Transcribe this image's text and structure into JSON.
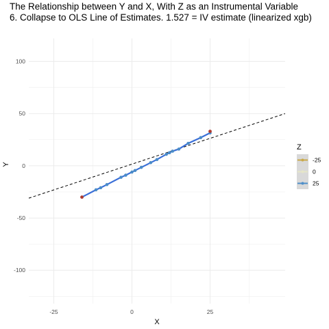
{
  "chart_data": {
    "type": "scatter",
    "title": "The Relationship between Y and X, With Z as an Instrumental Variable",
    "subtitle": "6. Collapse to OLS Line of Estimates. 1.527  = IV estimate (linearized xgb)",
    "xlabel": "X",
    "ylabel": "Y",
    "xlim": [
      -33,
      49
    ],
    "ylim": [
      -132,
      122
    ],
    "x_ticks": [
      -25,
      0,
      25
    ],
    "y_ticks": [
      -100,
      -50,
      0,
      50,
      100
    ],
    "grid": true,
    "legend": {
      "title": "Z",
      "position": "right",
      "entries": [
        {
          "label": "-25",
          "color": "#c9a94a"
        },
        {
          "label": "0",
          "color": "#e6e6c8"
        },
        {
          "label": "25",
          "color": "#4f8fc9"
        }
      ]
    },
    "fitted_points": [
      {
        "x": -16,
        "y": -30
      },
      {
        "x": -11.5,
        "y": -23
      },
      {
        "x": -10,
        "y": -21
      },
      {
        "x": -8,
        "y": -18
      },
      {
        "x": -3.5,
        "y": -11
      },
      {
        "x": -2,
        "y": -9
      },
      {
        "x": 0,
        "y": -6
      },
      {
        "x": 1,
        "y": -4.5
      },
      {
        "x": 3,
        "y": -1.5
      },
      {
        "x": 6,
        "y": 3
      },
      {
        "x": 8,
        "y": 6
      },
      {
        "x": 11,
        "y": 11
      },
      {
        "x": 12,
        "y": 12.5
      },
      {
        "x": 13,
        "y": 14
      },
      {
        "x": 15,
        "y": 16
      },
      {
        "x": 18,
        "y": 21.5
      },
      {
        "x": 22,
        "y": 27
      },
      {
        "x": 25,
        "y": 31.5
      }
    ],
    "observed_points": [
      {
        "x": -16,
        "y": -30
      },
      {
        "x": 25,
        "y": 33
      }
    ],
    "iv_line": {
      "x": [
        -33,
        49
      ],
      "y": [
        -31,
        50
      ]
    },
    "colors": {
      "fitted_line": "#3a6fd8",
      "fitted_points": "#4a8cc8",
      "observed_points": "#b03a2e",
      "iv_line": "#000000",
      "grid": "#ebebeb",
      "legend_key_bg": "#d9d9d9"
    }
  }
}
